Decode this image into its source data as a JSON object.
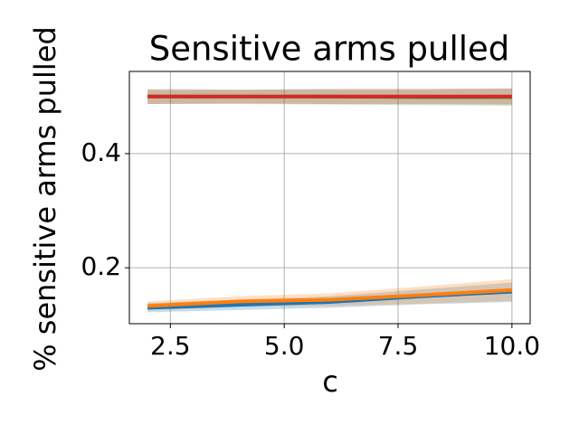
{
  "chart_data": {
    "type": "line",
    "title": "Sensitive arms pulled",
    "x_label": "c",
    "y_label": "% sensitive arms pulled",
    "x": [
      2,
      4,
      6,
      8,
      10
    ],
    "series": [
      {
        "color": "#1f77b4",
        "values": [
          0.13,
          0.135,
          0.14,
          0.15,
          0.158
        ],
        "lower": [
          0.122,
          0.126,
          0.13,
          0.136,
          0.14
        ],
        "upper": [
          0.138,
          0.144,
          0.15,
          0.162,
          0.174
        ]
      },
      {
        "color": "#ff7f0e",
        "values": [
          0.133,
          0.141,
          0.144,
          0.152,
          0.161
        ],
        "lower": [
          0.125,
          0.132,
          0.133,
          0.137,
          0.142
        ],
        "upper": [
          0.141,
          0.15,
          0.155,
          0.167,
          0.18
        ]
      },
      {
        "color": "#2ca02c",
        "values": [
          0.5,
          0.5,
          0.5,
          0.499,
          0.499
        ],
        "lower": [
          0.487,
          0.487,
          0.486,
          0.485,
          0.484
        ],
        "upper": [
          0.512,
          0.512,
          0.513,
          0.513,
          0.514
        ]
      },
      {
        "color": "#d62728",
        "values": [
          0.5,
          0.5,
          0.5,
          0.5,
          0.5
        ],
        "lower": [
          0.487,
          0.488,
          0.487,
          0.487,
          0.486
        ],
        "upper": [
          0.513,
          0.512,
          0.513,
          0.513,
          0.514
        ]
      }
    ],
    "xlim": [
      1.6,
      10.4
    ],
    "xticks": [
      {
        "value": 2.5,
        "label": "2.5"
      },
      {
        "value": 5,
        "label": "5.0"
      },
      {
        "value": 7.5,
        "label": "7.5"
      },
      {
        "value": 10,
        "label": "10.0"
      }
    ],
    "ylim": [
      0.102,
      0.544
    ],
    "yticks": [
      0.2,
      0.4
    ],
    "grid": true
  }
}
